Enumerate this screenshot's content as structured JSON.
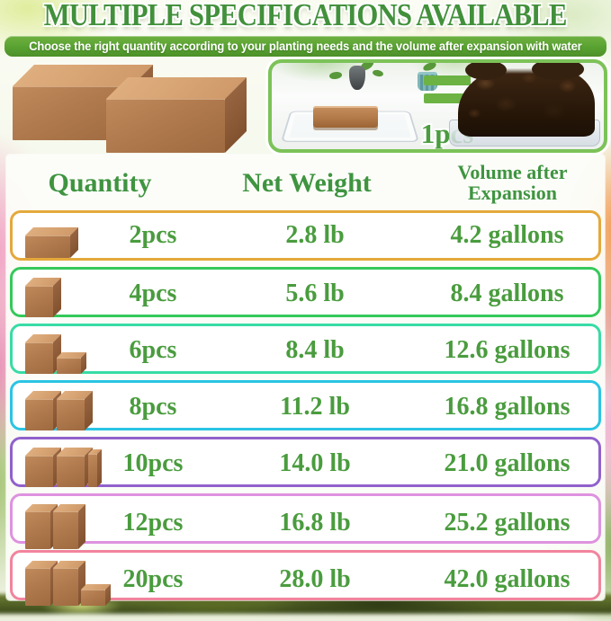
{
  "title": "MULTIPLE SPECIFICATIONS AVAILABLE",
  "banner": "Choose the right quantity according to your planting needs and the volume after expansion with water",
  "hero": {
    "equals_sign": "=",
    "pcs_label": "1pcs",
    "left_image": "two-coco-coir-bricks",
    "right_image": "brick-tray-equals-expanded-soil"
  },
  "table": {
    "headers": {
      "quantity": "Quantity",
      "net_weight": "Net Weight",
      "volume_line1": "Volume after",
      "volume_line2": "Expansion"
    },
    "rows": [
      {
        "quantity": "2pcs",
        "net_weight": "2.8 lb",
        "volume": "4.2 gallons",
        "border_color": "#e4a93b",
        "icons": [
          "brick-wide-icon"
        ]
      },
      {
        "quantity": "4pcs",
        "net_weight": "5.6 lb",
        "volume": "8.4 gallons",
        "border_color": "#35c95b",
        "icons": [
          "brick-cube-icon"
        ]
      },
      {
        "quantity": "6pcs",
        "net_weight": "8.4 lb",
        "volume": "12.6 gallons",
        "border_color": "#38dca6",
        "icons": [
          "brick-cube-icon",
          "brick-small-icon"
        ]
      },
      {
        "quantity": "8pcs",
        "net_weight": "11.2 lb",
        "volume": "16.8 gallons",
        "border_color": "#2bc4e4",
        "icons": [
          "brick-cube-icon",
          "brick-cube-icon"
        ]
      },
      {
        "quantity": "10pcs",
        "net_weight": "14.0 lb",
        "volume": "21.0 gallons",
        "border_color": "#9161cc",
        "icons": [
          "brick-cube-icon",
          "brick-cube-icon",
          "brick-slab-icon"
        ]
      },
      {
        "quantity": "12pcs",
        "net_weight": "16.8 lb",
        "volume": "25.2 gallons",
        "border_color": "#de92df",
        "icons": [
          "brick-tall-icon",
          "brick-tall-icon"
        ]
      },
      {
        "quantity": "20pcs",
        "net_weight": "28.0 lb",
        "volume": "42.0 gallons",
        "border_color": "#f2849e",
        "icons": [
          "brick-tall-icon",
          "brick-tall-icon",
          "brick-small-icon"
        ]
      }
    ]
  },
  "colors": {
    "title_green": "#42903b",
    "text_green": "#4a9c3e",
    "banner_green": "#58a231",
    "frame_green": "#7cc258",
    "equals_green": "#6cb344",
    "brick_front": "#b07a4e",
    "brick_top": "#d09a6a",
    "brick_side": "#82522f"
  }
}
